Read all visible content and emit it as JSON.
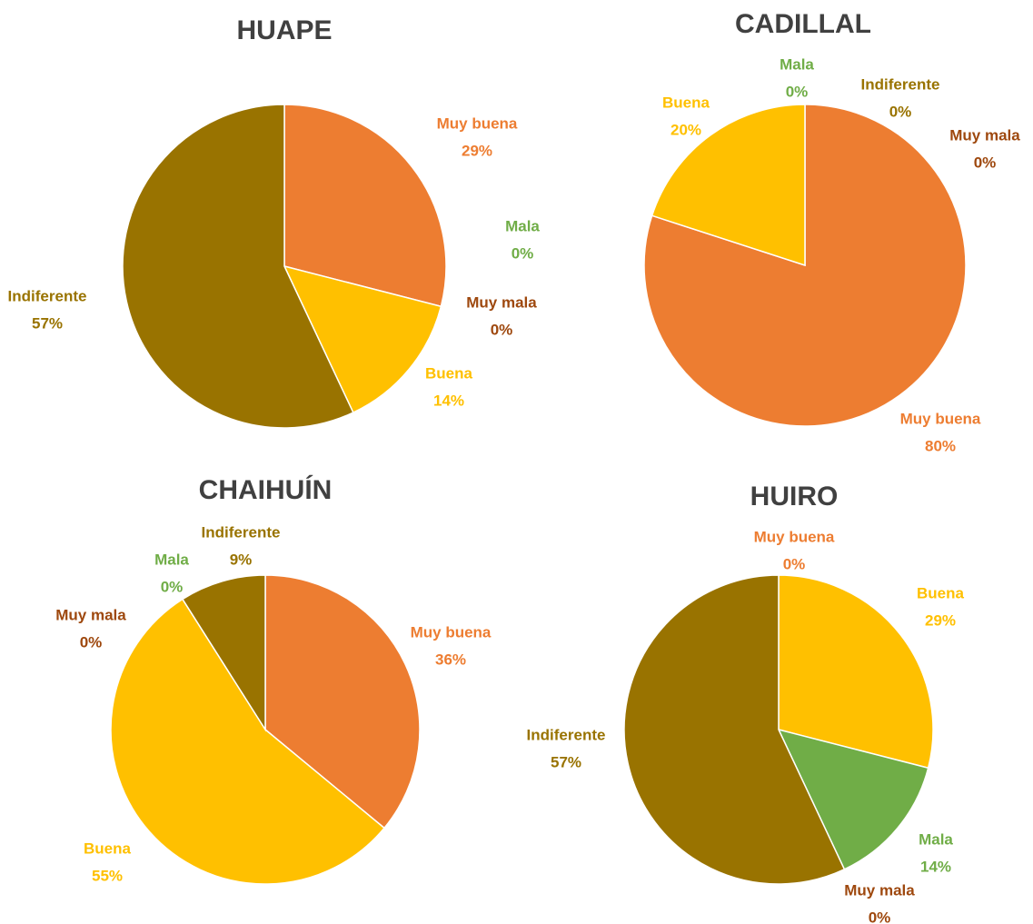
{
  "chart_data": [
    {
      "type": "pie",
      "title": "HUAPE",
      "categories": [
        "Muy buena",
        "Buena",
        "Mala",
        "Muy mala",
        "Indiferente"
      ],
      "values": [
        29,
        14,
        0,
        0,
        57
      ],
      "value_labels": [
        "29%",
        "14%",
        "0%",
        "0%",
        "57%"
      ],
      "colors": [
        "#ED7D31",
        "#FFC000",
        "#70AD47",
        "#9E480E",
        "#997300"
      ]
    },
    {
      "type": "pie",
      "title": "CADILLAL",
      "categories": [
        "Muy buena",
        "Buena",
        "Mala",
        "Muy mala",
        "Indiferente"
      ],
      "values": [
        80,
        20,
        0,
        0,
        0
      ],
      "value_labels": [
        "80%",
        "20%",
        "0%",
        "0%",
        "0%"
      ],
      "colors": [
        "#ED7D31",
        "#FFC000",
        "#70AD47",
        "#9E480E",
        "#997300"
      ]
    },
    {
      "type": "pie",
      "title": "CHAIHUÍN",
      "categories": [
        "Muy buena",
        "Buena",
        "Muy mala",
        "Mala",
        "Indiferente"
      ],
      "values": [
        36,
        55,
        0,
        0,
        9
      ],
      "value_labels": [
        "36%",
        "55%",
        "0%",
        "0%",
        "9%"
      ],
      "colors": [
        "#ED7D31",
        "#FFC000",
        "#9E480E",
        "#70AD47",
        "#997300"
      ]
    },
    {
      "type": "pie",
      "title": "HUIRO",
      "categories": [
        "Muy buena",
        "Buena",
        "Mala",
        "Muy mala",
        "Indiferente"
      ],
      "values": [
        0,
        29,
        14,
        0,
        57
      ],
      "value_labels": [
        "0%",
        "29%",
        "14%",
        "0%",
        "57%"
      ],
      "colors": [
        "#ED7D31",
        "#FFC000",
        "#70AD47",
        "#9E480E",
        "#997300"
      ]
    }
  ]
}
